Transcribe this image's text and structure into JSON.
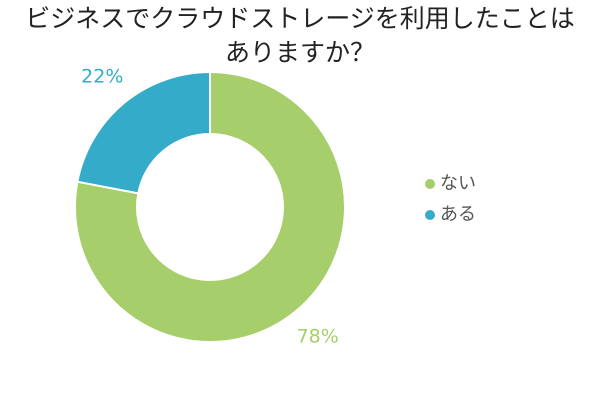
{
  "chart_data": {
    "type": "pie",
    "style": "donut",
    "title_lines": [
      "ビジネスでクラウドストレージを利用したことは",
      "ありますか？"
    ],
    "slices": [
      {
        "label": "ない",
        "value": 78,
        "value_label": "78%",
        "color": "#a6ce6a"
      },
      {
        "label": "ある",
        "value": 22,
        "value_label": "22%",
        "color": "#34abc8"
      }
    ],
    "legend_position": "right",
    "start": "top",
    "direction": "clockwise"
  }
}
